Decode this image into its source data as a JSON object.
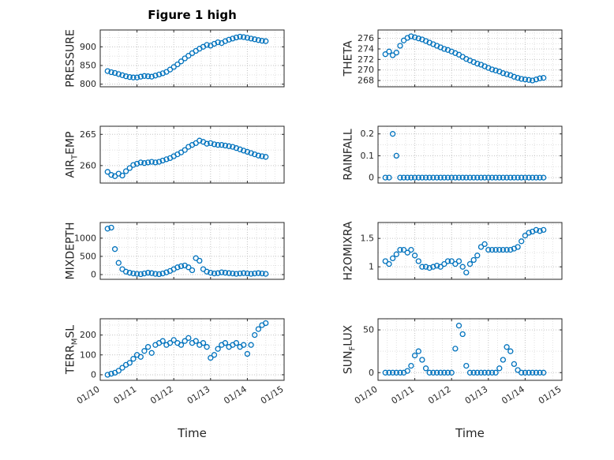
{
  "chart_data": {
    "type": "scatter",
    "title": "Figure 1 high",
    "marker": "open-circle",
    "marker_color": "#0072BD",
    "axes_color": "#262626",
    "grid": "major+minor dotted",
    "x_axis": {
      "label": "Time",
      "lim": [
        10,
        15
      ],
      "ticks": [
        10,
        11,
        12,
        13,
        14,
        15
      ],
      "ticklabels": [
        "01/10",
        "01/11",
        "01/12",
        "01/13",
        "01/14",
        "01/15"
      ]
    },
    "time": [
      10.2,
      10.3,
      10.4,
      10.5,
      10.6,
      10.7,
      10.8,
      10.9,
      11.0,
      11.1,
      11.2,
      11.3,
      11.4,
      11.5,
      11.6,
      11.7,
      11.8,
      11.9,
      12.0,
      12.1,
      12.2,
      12.3,
      12.4,
      12.5,
      12.6,
      12.7,
      12.8,
      12.9,
      13.0,
      13.1,
      13.2,
      13.3,
      13.4,
      13.5,
      13.6,
      13.7,
      13.8,
      13.9,
      14.0,
      14.1,
      14.2,
      14.3,
      14.4,
      14.5
    ],
    "subplots": [
      {
        "name": "PRESSURE",
        "ylabel_pre": "PRESSURE",
        "ylabel_sub": "",
        "ylabel_post": "",
        "ylim": [
          793,
          945
        ],
        "yticks": [
          800,
          850,
          900
        ],
        "yticklabels": [
          "800",
          "850",
          "900"
        ],
        "y": [
          835,
          832,
          830,
          827,
          824,
          821,
          819,
          818,
          818,
          820,
          822,
          821,
          820,
          823,
          826,
          829,
          833,
          839,
          846,
          853,
          861,
          869,
          876,
          883,
          889,
          895,
          900,
          905,
          903,
          908,
          912,
          910,
          915,
          919,
          922,
          925,
          927,
          926,
          924,
          922,
          920,
          918,
          916,
          915
        ]
      },
      {
        "name": "THETA",
        "ylabel_pre": "THETA",
        "ylabel_sub": "",
        "ylabel_post": "",
        "ylim": [
          266.8,
          277.6
        ],
        "yticks": [
          268,
          270,
          272,
          274,
          276
        ],
        "yticklabels": [
          "268",
          "270",
          "272",
          "274",
          "276"
        ],
        "y": [
          273.0,
          273.5,
          272.8,
          273.3,
          274.6,
          275.6,
          276.1,
          276.4,
          276.2,
          276.0,
          275.8,
          275.5,
          275.2,
          274.9,
          274.6,
          274.3,
          274.0,
          273.8,
          273.5,
          273.2,
          272.9,
          272.5,
          272.1,
          271.8,
          271.5,
          271.2,
          271.0,
          270.7,
          270.4,
          270.1,
          269.9,
          269.7,
          269.4,
          269.2,
          269.0,
          268.7,
          268.5,
          268.3,
          268.2,
          268.1,
          268.0,
          268.2,
          268.4,
          268.5
        ]
      },
      {
        "name": "AIR_TEMP",
        "ylabel_pre": "AIR",
        "ylabel_sub": "T",
        "ylabel_post": "EMP",
        "ylim": [
          257.2,
          266.3
        ],
        "yticks": [
          260,
          265
        ],
        "yticklabels": [
          "260",
          "265"
        ],
        "y": [
          259.0,
          258.5,
          258.3,
          258.7,
          258.4,
          259.1,
          259.6,
          260.1,
          260.3,
          260.5,
          260.4,
          260.5,
          260.6,
          260.5,
          260.6,
          260.8,
          261.0,
          261.2,
          261.5,
          261.8,
          262.1,
          262.5,
          263.0,
          263.3,
          263.6,
          264.0,
          263.8,
          263.5,
          263.6,
          263.4,
          263.3,
          263.3,
          263.2,
          263.1,
          263.0,
          262.8,
          262.6,
          262.4,
          262.2,
          262.0,
          261.8,
          261.6,
          261.5,
          261.4
        ]
      },
      {
        "name": "RAINFALL",
        "ylabel_pre": "RAINFALL",
        "ylabel_sub": "",
        "ylabel_post": "",
        "ylim": [
          -0.025,
          0.235
        ],
        "yticks": [
          0,
          0.1,
          0.2
        ],
        "yticklabels": [
          "0",
          "0.1",
          "0.2"
        ],
        "y": [
          0,
          0,
          0.2,
          0.1,
          0,
          0,
          0,
          0,
          0,
          0,
          0,
          0,
          0,
          0,
          0,
          0,
          0,
          0,
          0,
          0,
          0,
          0,
          0,
          0,
          0,
          0,
          0,
          0,
          0,
          0,
          0,
          0,
          0,
          0,
          0,
          0,
          0,
          0,
          0,
          0,
          0,
          0,
          0,
          0
        ]
      },
      {
        "name": "MIXDEPTH",
        "ylabel_pre": "MIXDEPTH",
        "ylabel_sub": "",
        "ylabel_post": "",
        "ylim": [
          -130,
          1430
        ],
        "yticks": [
          0,
          500,
          1000
        ],
        "yticklabels": [
          "0",
          "500",
          "1000"
        ],
        "y": [
          1260,
          1290,
          700,
          320,
          150,
          80,
          50,
          30,
          20,
          10,
          30,
          50,
          40,
          20,
          10,
          30,
          60,
          100,
          150,
          200,
          230,
          250,
          200,
          120,
          450,
          380,
          150,
          80,
          50,
          30,
          40,
          60,
          50,
          40,
          30,
          20,
          30,
          40,
          30,
          20,
          30,
          40,
          30,
          20
        ]
      },
      {
        "name": "H2OMIXRA",
        "ylabel_pre": "H2OMIXRA",
        "ylabel_sub": "",
        "ylabel_post": "",
        "ylim": [
          0.78,
          1.78
        ],
        "yticks": [
          1,
          1.5
        ],
        "yticklabels": [
          "1",
          "1.5"
        ],
        "y": [
          1.1,
          1.05,
          1.15,
          1.22,
          1.3,
          1.3,
          1.25,
          1.3,
          1.2,
          1.1,
          1.0,
          1.0,
          0.98,
          1.0,
          1.02,
          1.0,
          1.05,
          1.1,
          1.1,
          1.05,
          1.1,
          1.0,
          0.9,
          1.05,
          1.12,
          1.2,
          1.35,
          1.4,
          1.3,
          1.3,
          1.3,
          1.3,
          1.3,
          1.3,
          1.3,
          1.32,
          1.35,
          1.45,
          1.55,
          1.6,
          1.62,
          1.65,
          1.63,
          1.65
        ]
      },
      {
        "name": "TERR_MSL",
        "ylabel_pre": "TERR",
        "ylabel_sub": "M",
        "ylabel_post": "SL",
        "ylim": [
          -28,
          282
        ],
        "yticks": [
          0,
          100,
          200
        ],
        "yticklabels": [
          "0",
          "100",
          "200"
        ],
        "y": [
          0,
          5,
          10,
          20,
          35,
          50,
          60,
          80,
          100,
          90,
          120,
          140,
          110,
          150,
          160,
          170,
          150,
          160,
          175,
          160,
          150,
          170,
          185,
          160,
          170,
          150,
          160,
          140,
          85,
          100,
          130,
          150,
          160,
          140,
          150,
          160,
          140,
          150,
          105,
          150,
          200,
          230,
          250,
          260
        ]
      },
      {
        "name": "SUN_FLUX",
        "ylabel_pre": "SUN",
        "ylabel_sub": "F",
        "ylabel_post": "LUX",
        "ylim": [
          -9,
          63
        ],
        "yticks": [
          0,
          50
        ],
        "yticklabels": [
          "0",
          "50"
        ],
        "y": [
          0,
          0,
          0,
          0,
          0,
          0,
          2,
          8,
          20,
          25,
          15,
          5,
          0,
          0,
          0,
          0,
          0,
          0,
          0,
          28,
          55,
          45,
          8,
          0,
          0,
          0,
          0,
          0,
          0,
          0,
          0,
          5,
          15,
          30,
          25,
          10,
          3,
          0,
          0,
          0,
          0,
          0,
          0,
          0
        ]
      }
    ]
  }
}
